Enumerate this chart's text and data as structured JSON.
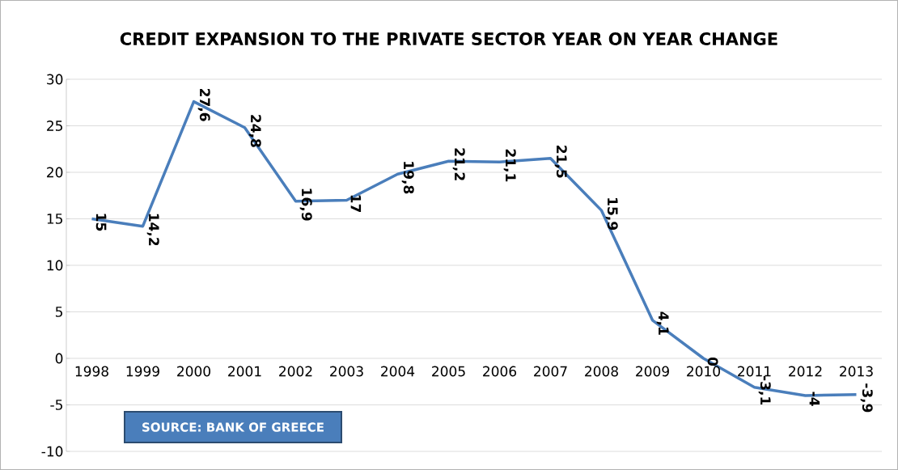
{
  "chart_data": {
    "type": "line",
    "title": "CREDIT EXPANSION TO THE PRIVATE SECTOR YEAR ON YEAR CHANGE",
    "categories": [
      "1998",
      "1999",
      "2000",
      "2001",
      "2002",
      "2003",
      "2004",
      "2005",
      "2006",
      "2007",
      "2008",
      "2009",
      "2010",
      "2011",
      "2012",
      "2013"
    ],
    "values": [
      15,
      14.2,
      27.6,
      24.8,
      16.9,
      17,
      19.8,
      21.2,
      21.1,
      21.5,
      15.9,
      4.1,
      0,
      -3.1,
      -4,
      -3.9
    ],
    "value_labels": [
      "15",
      "14,2",
      "27,6",
      "24,8",
      "16,9",
      "17",
      "19,8",
      "21,2",
      "21,1",
      "21,5",
      "15,9",
      "4,1",
      "0",
      "-3,1",
      "-4",
      "-3,9"
    ],
    "color": "#4a7ebb",
    "ylim": [
      -10,
      30
    ],
    "yticks": [
      -10,
      -5,
      0,
      5,
      10,
      15,
      20,
      25,
      30
    ],
    "grid": "y",
    "marker": "none",
    "line_style": "solid",
    "annotations": [
      "SOURCE: BANK OF GREECE"
    ]
  }
}
